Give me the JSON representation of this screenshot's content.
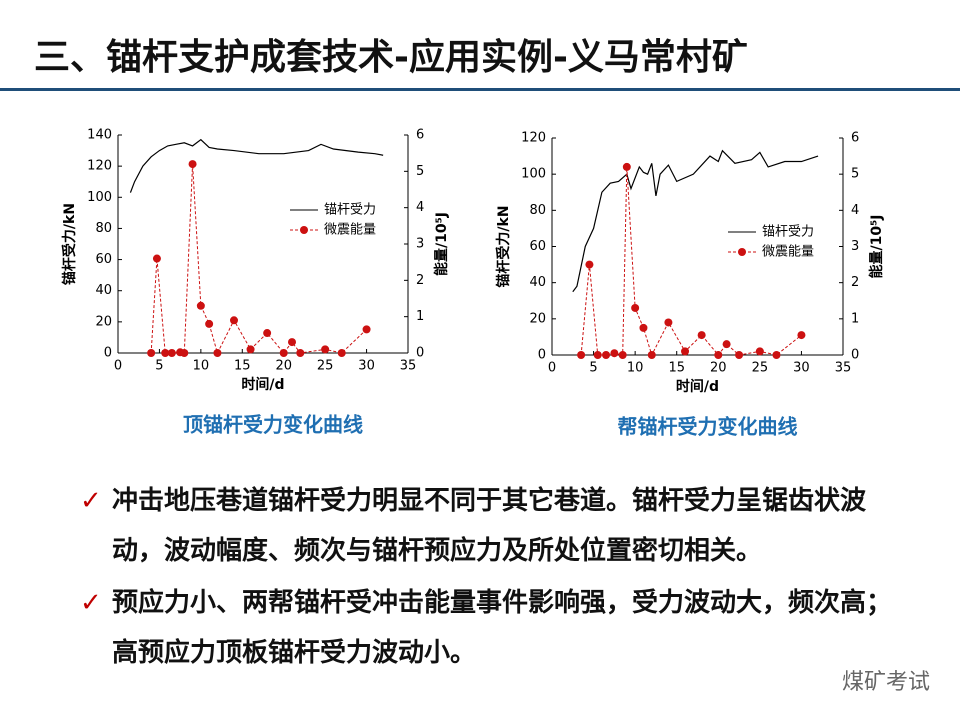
{
  "title": "三、锚杆支护成套技术-应用实例-义马常村矿",
  "chart_data": [
    {
      "type": "line",
      "caption": "顶锚杆受力变化曲线",
      "xlabel": "时间/d",
      "ylabel": "锚杆受力/kN",
      "y2label": "能量/10⁵J",
      "xlim": [
        0,
        35
      ],
      "xticks": [
        0,
        5,
        10,
        15,
        20,
        25,
        30,
        35
      ],
      "ylim": [
        0,
        140
      ],
      "yticks": [
        0,
        20,
        40,
        60,
        80,
        100,
        120,
        140
      ],
      "y2lim": [
        0,
        6
      ],
      "y2ticks": [
        0,
        1,
        2,
        3,
        4,
        5,
        6
      ],
      "series": [
        {
          "name": "锚杆受力",
          "color": "#000000",
          "x": [
            1.5,
            2,
            3,
            4,
            5,
            6,
            7,
            8,
            9,
            9.5,
            10,
            11,
            12,
            14,
            17,
            20,
            23,
            24.5,
            26,
            29,
            31,
            32
          ],
          "values": [
            103,
            110,
            120,
            126,
            130,
            133,
            134,
            135,
            133,
            135,
            137,
            132,
            131,
            130,
            128,
            128,
            130,
            134,
            131,
            129,
            128,
            127
          ]
        },
        {
          "name": "微震能量",
          "color": "#cc1111",
          "axis": "y2",
          "x": [
            4,
            4.7,
            5.7,
            6.5,
            7.5,
            8,
            9,
            10,
            11,
            12,
            14,
            16,
            18,
            20,
            21,
            22,
            25,
            27,
            30
          ],
          "values": [
            0,
            2.6,
            0,
            0,
            0.02,
            0,
            5.2,
            1.3,
            0.8,
            0,
            0.9,
            0.1,
            0.55,
            0,
            0.3,
            0,
            0.1,
            0,
            0.65
          ]
        }
      ]
    },
    {
      "type": "line",
      "caption": "帮锚杆受力变化曲线",
      "xlabel": "时间/d",
      "ylabel": "锚杆受力/kN",
      "y2label": "能量/10⁵J",
      "xlim": [
        0,
        35
      ],
      "xticks": [
        0,
        5,
        10,
        15,
        20,
        25,
        30,
        35
      ],
      "ylim": [
        0,
        120
      ],
      "yticks": [
        0,
        20,
        40,
        60,
        80,
        100,
        120
      ],
      "y2lim": [
        0,
        6
      ],
      "y2ticks": [
        0,
        1,
        2,
        3,
        4,
        5,
        6
      ],
      "series": [
        {
          "name": "锚杆受力",
          "color": "#000000",
          "x": [
            2.5,
            3,
            4,
            5,
            6,
            7,
            8,
            9,
            9.5,
            10.5,
            11,
            11.5,
            12,
            12.5,
            13,
            14,
            15,
            17,
            19,
            20,
            20.5,
            22,
            24,
            25,
            26,
            28,
            30,
            32
          ],
          "values": [
            35,
            38,
            60,
            70,
            90,
            95,
            96,
            100,
            92,
            104,
            101,
            100,
            106,
            88,
            100,
            105,
            96,
            100,
            110,
            107,
            113,
            106,
            108,
            112,
            104,
            107,
            107,
            110
          ]
        },
        {
          "name": "微震能量",
          "color": "#cc1111",
          "axis": "y2",
          "x": [
            3.5,
            4.5,
            5.5,
            6.5,
            7.5,
            8.5,
            9,
            10,
            11,
            12,
            14,
            16,
            18,
            20,
            21,
            22.5,
            25,
            27,
            30
          ],
          "values": [
            0,
            2.5,
            0,
            0,
            0.05,
            0,
            5.2,
            1.3,
            0.75,
            0,
            0.9,
            0.1,
            0.55,
            0,
            0.3,
            0,
            0.1,
            0,
            0.55
          ]
        }
      ]
    }
  ],
  "bullets": [
    "冲击地压巷道锚杆受力明显不同于其它巷道。锚杆受力呈锯齿状波动，波动幅度、频次与锚杆预应力及所处位置密切相关。",
    "预应力小、两帮锚杆受冲击能量事件影响强，受力波动大，频次高；高预应力顶板锚杆受力波动小。"
  ],
  "watermark": "煤矿考试"
}
